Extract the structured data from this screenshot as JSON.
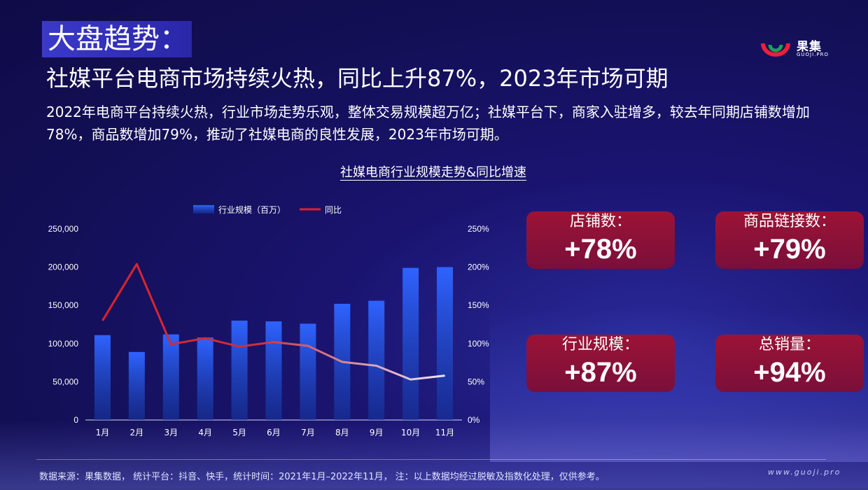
{
  "header": {
    "title": "大盘趋势：",
    "subtitle": "社媒平台电商市场持续火热，同比上升87%，2023年市场可期",
    "description": "2022年电商平台持续火热，行业市场走势乐观，整体交易规模超万亿；社媒平台下，商家入驻增多，较去年同期店铺数增加78%，商品数增加79%，推动了社媒电商的良性发展，2023年市场可期。"
  },
  "logo": {
    "text": "果集",
    "sub": "GUOJI.PRO"
  },
  "chart_title": "社媒电商行业规模走势&同比增速",
  "chart_data": {
    "type": "bar",
    "categories": [
      "1月",
      "2月",
      "3月",
      "4月",
      "5月",
      "6月",
      "7月",
      "8月",
      "9月",
      "10月",
      "11月"
    ],
    "series": [
      {
        "name": "行业规模（百万）",
        "type": "bar",
        "axis": "left",
        "values": [
          111000,
          89000,
          112000,
          108000,
          130000,
          129000,
          126000,
          152000,
          156000,
          199000,
          200000
        ]
      },
      {
        "name": "同比",
        "type": "line",
        "axis": "right",
        "values": [
          130,
          204,
          99,
          107,
          96,
          102,
          97,
          76,
          71,
          53,
          58
        ]
      }
    ],
    "y_left": {
      "min": 0,
      "max": 250000,
      "ticks": [
        "0",
        "50,000",
        "100,000",
        "150,000",
        "200,000",
        "250,000"
      ]
    },
    "y_right": {
      "min": 0,
      "max": 250,
      "ticks": [
        "0%",
        "50%",
        "100%",
        "150%",
        "200%",
        "250%"
      ]
    },
    "legend_position": "top",
    "grid": false
  },
  "stats": [
    {
      "label": "店铺数：",
      "value": "+78%"
    },
    {
      "label": "商品链接数：",
      "value": "+79%"
    },
    {
      "label": "行业规模：",
      "value": "+87%"
    },
    {
      "label": "总销量：",
      "value": "+94%"
    }
  ],
  "footer": {
    "source": "数据来源：果集数据，  统计平台：抖音、快手，统计时间：2021年1月–2022年11月，  注：以上数据均经过脱敏及指数化处理，仅供参考。",
    "url": "www.guoji.pro"
  },
  "colors": {
    "bar_top": "#2f63ff",
    "bar_bottom": "#1a3fb8",
    "line_start": "#e0202a",
    "line_end": "#e8e8f8",
    "card": "#8a1238"
  }
}
